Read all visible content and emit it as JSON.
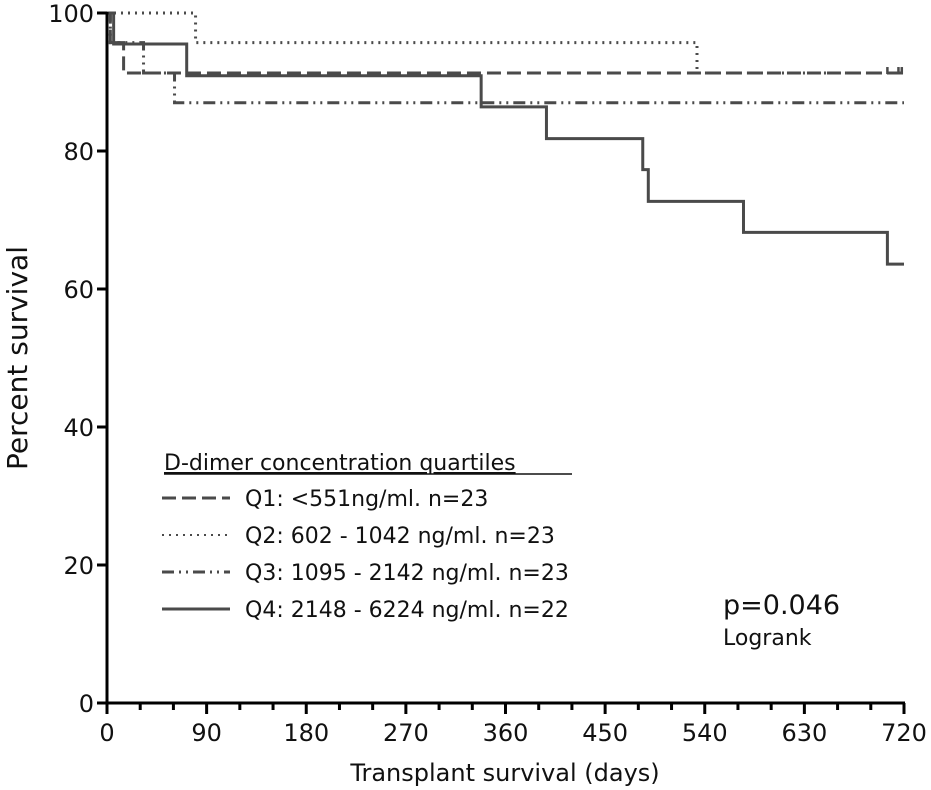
{
  "chart_data": {
    "type": "line",
    "subtype": "kaplan-meier",
    "title": "",
    "xlabel": "Transplant survival (days)",
    "ylabel": "Percent survival",
    "xlim": [
      0,
      720
    ],
    "ylim": [
      0,
      100
    ],
    "x_ticks": [
      0,
      90,
      180,
      270,
      360,
      450,
      540,
      630,
      720
    ],
    "x_tick_labels": [
      "0",
      "90",
      "180",
      "270",
      "360",
      "450",
      "540",
      "630",
      "720"
    ],
    "x_minor_step": 30,
    "y_ticks": [
      0,
      20,
      40,
      60,
      80,
      100
    ],
    "y_tick_labels": [
      "0",
      "20",
      "40",
      "60",
      "80",
      "100"
    ],
    "grid": false,
    "legend": {
      "title": "D-dimer concentration quartiles",
      "position": "bottom-left"
    },
    "series": [
      {
        "name": "Q1: <551ng/ml. n=23",
        "style": "dashed",
        "color": "#4a4a4a",
        "steps": [
          [
            0,
            100
          ],
          [
            3,
            95.7
          ],
          [
            15,
            91.3
          ],
          [
            720,
            91.3
          ]
        ],
        "censored": [
          [
            705,
            91.3
          ],
          [
            715,
            91.3
          ],
          [
            718,
            91.3
          ]
        ]
      },
      {
        "name": "Q2: 602 - 1042 ng/ml. n=23",
        "style": "dotted",
        "color": "#4a4a4a",
        "steps": [
          [
            0,
            100
          ],
          [
            80,
            95.7
          ],
          [
            533,
            91.3
          ],
          [
            720,
            91.3
          ]
        ],
        "censored": []
      },
      {
        "name": "Q3: 1095 - 2142 ng/ml. n=23",
        "style": "dash-dot-dot",
        "color": "#4a4a4a",
        "steps": [
          [
            0,
            100
          ],
          [
            3,
            95.7
          ],
          [
            33,
            91.3
          ],
          [
            61,
            87.0
          ],
          [
            720,
            87.0
          ]
        ],
        "censored": []
      },
      {
        "name": "Q4: 2148 - 6224 ng/ml. n=22",
        "style": "solid",
        "color": "#4a4a4a",
        "steps": [
          [
            0,
            100
          ],
          [
            6,
            95.5
          ],
          [
            72,
            90.9
          ],
          [
            338,
            86.4
          ],
          [
            397,
            81.8
          ],
          [
            484,
            77.3
          ],
          [
            489,
            72.7
          ],
          [
            575,
            68.2
          ],
          [
            705,
            63.6
          ],
          [
            720,
            63.6
          ]
        ],
        "censored": []
      }
    ],
    "annotations": [
      {
        "text": "p=0.046",
        "position": "bottom-right"
      },
      {
        "text": "Logrank",
        "position": "bottom-right"
      }
    ]
  }
}
